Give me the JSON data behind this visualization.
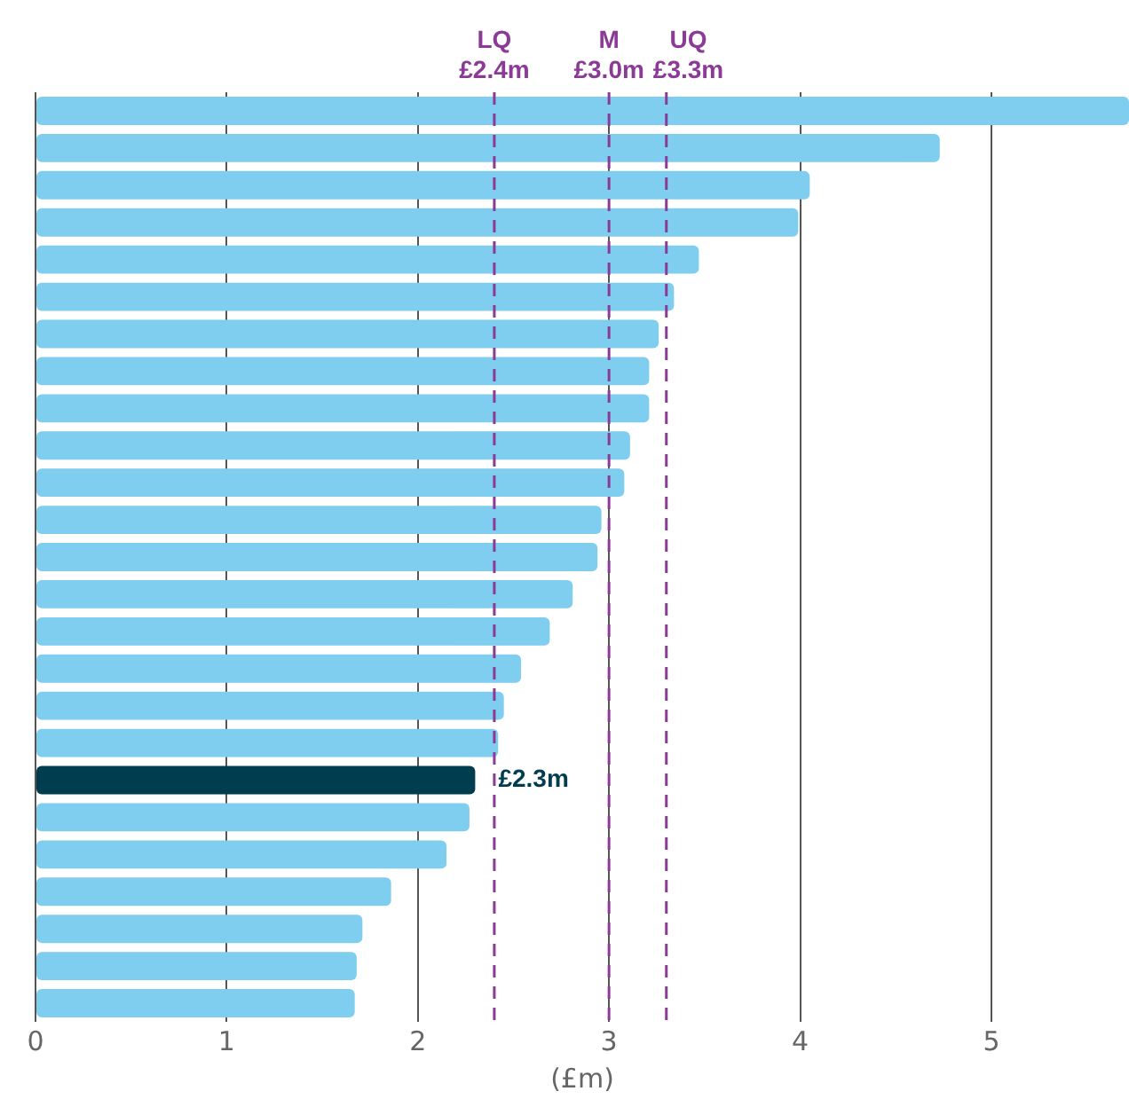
{
  "chart_data": {
    "type": "bar",
    "orientation": "horizontal",
    "xlabel": "(£m)",
    "categories": [
      null,
      null,
      null,
      null,
      null,
      null,
      null,
      null,
      null,
      null,
      null,
      null,
      null,
      null,
      null,
      null,
      null,
      null,
      null,
      null,
      null,
      null,
      null,
      null,
      null
    ],
    "values": [
      5.72,
      4.73,
      4.05,
      3.99,
      3.47,
      3.34,
      3.26,
      3.21,
      3.21,
      3.11,
      3.08,
      2.96,
      2.94,
      2.81,
      2.69,
      2.54,
      2.45,
      2.42,
      2.3,
      2.27,
      2.15,
      1.86,
      1.71,
      1.68,
      1.67
    ],
    "colors": [
      "#7fcdef",
      "#7fcdef",
      "#7fcdef",
      "#7fcdef",
      "#7fcdef",
      "#7fcdef",
      "#7fcdef",
      "#7fcdef",
      "#7fcdef",
      "#7fcdef",
      "#7fcdef",
      "#7fcdef",
      "#7fcdef",
      "#7fcdef",
      "#7fcdef",
      "#7fcdef",
      "#7fcdef",
      "#7fcdef",
      "#003d4f",
      "#7fcdef",
      "#7fcdef",
      "#7fcdef",
      "#7fcdef",
      "#7fcdef",
      "#7fcdef"
    ],
    "value_labels": [
      null,
      null,
      null,
      null,
      null,
      null,
      null,
      null,
      null,
      null,
      null,
      null,
      null,
      null,
      null,
      null,
      null,
      null,
      "£2.3m",
      null,
      null,
      null,
      null,
      null,
      null
    ],
    "xlim": [
      0,
      5.72
    ],
    "xticks": [
      0,
      1,
      2,
      3,
      4,
      5
    ],
    "grid": "x",
    "tick_labels": "x",
    "ref_lines": [
      {
        "axis": "x",
        "value": 2.4,
        "label": "LQ £2.4m",
        "color": "#8b3a96",
        "line_style": "dashed"
      },
      {
        "axis": "x",
        "value": 3.0,
        "label": "M £3.0m",
        "color": "#8b3a96",
        "line_style": "dashed"
      },
      {
        "axis": "x",
        "value": 3.3,
        "label": "UQ £3.3m",
        "color": "#8b3a96",
        "line_style": "dashed"
      }
    ]
  }
}
